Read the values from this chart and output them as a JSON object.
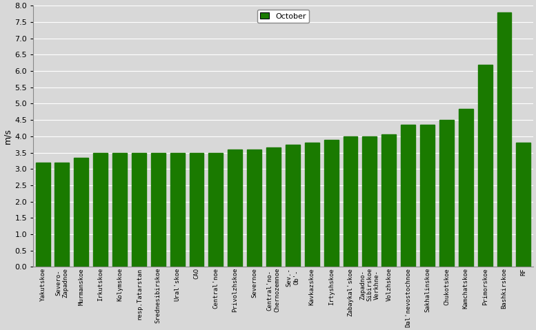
{
  "categories": [
    "Yakutskoe",
    "Severo-\nZapadnoe",
    "Murmanskoe",
    "Irkutskoe",
    "Kolymskoe",
    "resp.Tatarstan",
    "Srednesibirskoe",
    "Ural'skoe",
    "CAO",
    "Central'noe",
    "Privolzhskoe",
    "Severnoe",
    "Central'no-\nChernozemnoe",
    "Sev.-\nOb'-",
    "Kavkazskoe",
    "Irtyshskoe",
    "Zabaykal'skoe",
    "Zapadno-\nSibirskoe\nVerkhne-",
    "Volzhskoe",
    "Dal'nevostochnoe",
    "Sakhalinskoe",
    "Chukotskoe",
    "Kamchatskoe",
    "Primorskoe",
    "Bashkirskoe",
    "RF"
  ],
  "values": [
    3.2,
    3.2,
    3.35,
    3.5,
    3.5,
    3.5,
    3.5,
    3.5,
    3.5,
    3.5,
    3.6,
    3.6,
    3.65,
    3.75,
    3.8,
    3.9,
    4.0,
    4.0,
    4.05,
    4.35,
    4.35,
    4.5,
    4.85,
    6.2,
    7.8,
    3.8
  ],
  "bar_color": "#1a7a00",
  "background_color": "#d8d8d8",
  "ylabel": "m/s",
  "ylim": [
    0,
    8
  ],
  "yticks": [
    0,
    0.5,
    1.0,
    1.5,
    2.0,
    2.5,
    3.0,
    3.5,
    4.0,
    4.5,
    5.0,
    5.5,
    6.0,
    6.5,
    7.0,
    7.5,
    8.0
  ],
  "legend_label": "October",
  "legend_color": "#1a7a00",
  "figwidth": 7.77,
  "figheight": 4.79,
  "dpi": 100
}
